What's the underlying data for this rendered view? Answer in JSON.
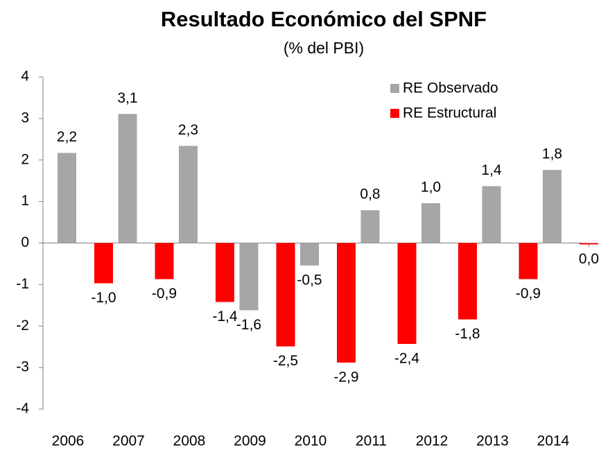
{
  "chart_data": {
    "type": "bar",
    "title": "Resultado Económico del SPNF",
    "subtitle": "(% del PBI)",
    "categories": [
      "2006",
      "2007",
      "2008",
      "2009",
      "2010",
      "2011",
      "2012",
      "2013",
      "2014"
    ],
    "series": [
      {
        "name": "RE Observado",
        "color": "#a6a6a6",
        "values": [
          2.17,
          3.11,
          2.34,
          -1.62,
          -0.54,
          0.79,
          0.96,
          1.37,
          1.76
        ],
        "value_labels": [
          "2,2",
          "3,1",
          "2,3",
          "-1,6",
          "-0,5",
          "0,8",
          "1,0",
          "1,4",
          "1,8"
        ]
      },
      {
        "name": "RE Estructural",
        "color": "#ff0000",
        "values": [
          -0.97,
          -0.87,
          -1.42,
          -2.49,
          -2.88,
          -2.43,
          -1.84,
          -0.87,
          -0.03
        ],
        "value_labels": [
          "-1,0",
          "-0,9",
          "-1,4",
          "-2,5",
          "-2,9",
          "-2,4",
          "-1,8",
          "-0,9",
          "0,0"
        ]
      }
    ],
    "ylim": [
      -4,
      4
    ],
    "yticks": [
      -4,
      -3,
      -2,
      -1,
      0,
      1,
      2,
      3,
      4
    ],
    "legend": "top-right"
  }
}
